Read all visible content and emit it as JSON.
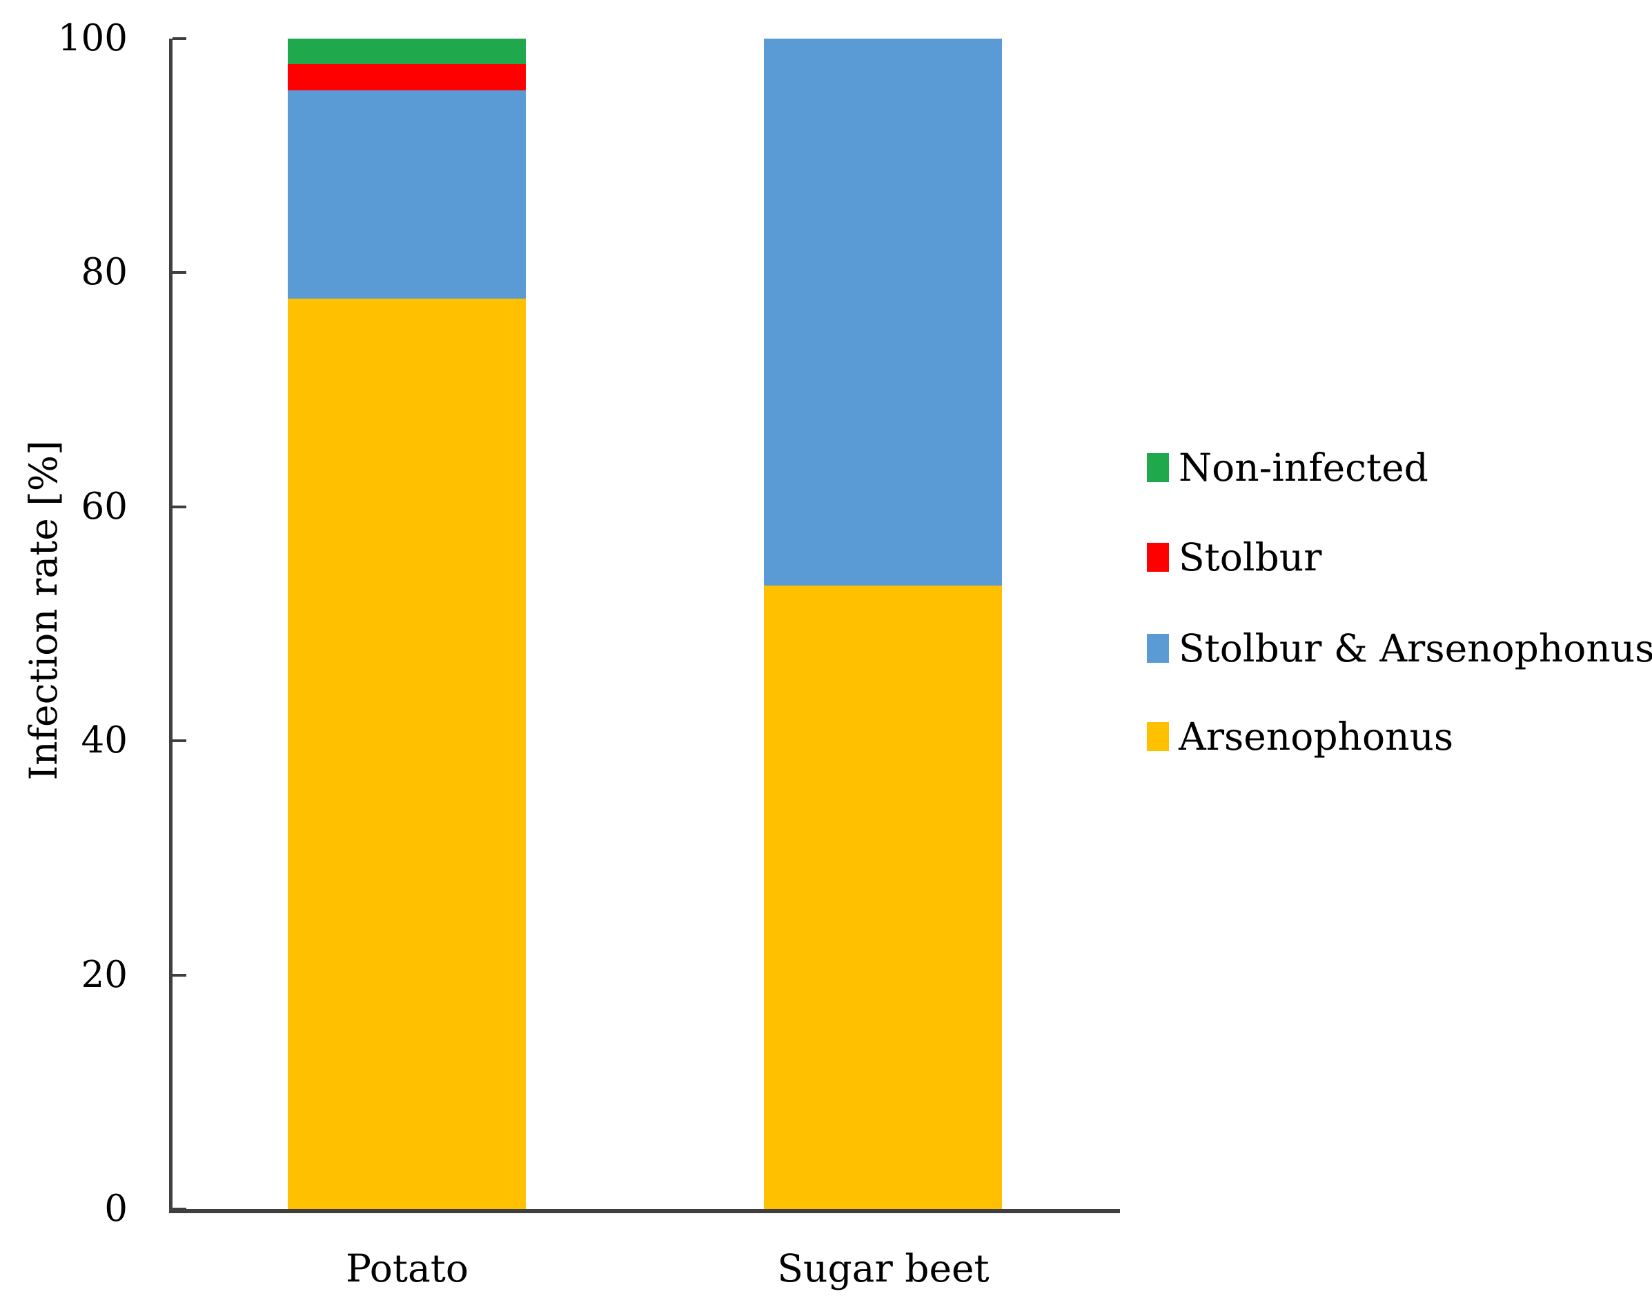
{
  "figure": {
    "background": "#FFFFFF",
    "text_color": "#000000",
    "axis_color": "#3F3F3F"
  },
  "chart_data": {
    "type": "bar",
    "stacked": true,
    "title": "",
    "categories": [
      "Potato",
      "Sugar beet"
    ],
    "series": [
      {
        "name": "Arsenophonus",
        "color": "#FFC000",
        "values": [
          77.8,
          53.3
        ]
      },
      {
        "name": "Stolbur & Arsenophonus",
        "color": "#5B9BD5",
        "values": [
          17.8,
          46.7
        ]
      },
      {
        "name": "Stolbur",
        "color": "#FF0000",
        "values": [
          2.2,
          0
        ]
      },
      {
        "name": "Non-infected",
        "color": "#1FA84C",
        "values": [
          2.2,
          0
        ]
      }
    ],
    "xlabel": "",
    "ylabel": "Infection rate [%]",
    "ylim": [
      0,
      100
    ],
    "yticks": [
      0,
      20,
      40,
      60,
      80,
      100
    ],
    "grid": false,
    "legend": {
      "position": "right",
      "entries": [
        {
          "label": "Non-infected",
          "color": "#1FA84C"
        },
        {
          "label": "Stolbur",
          "color": "#FF0000"
        },
        {
          "label": "Stolbur & Arsenophonus",
          "color": "#5B9BD5"
        },
        {
          "label": "Arsenophonus",
          "color": "#FFC000"
        }
      ]
    }
  }
}
